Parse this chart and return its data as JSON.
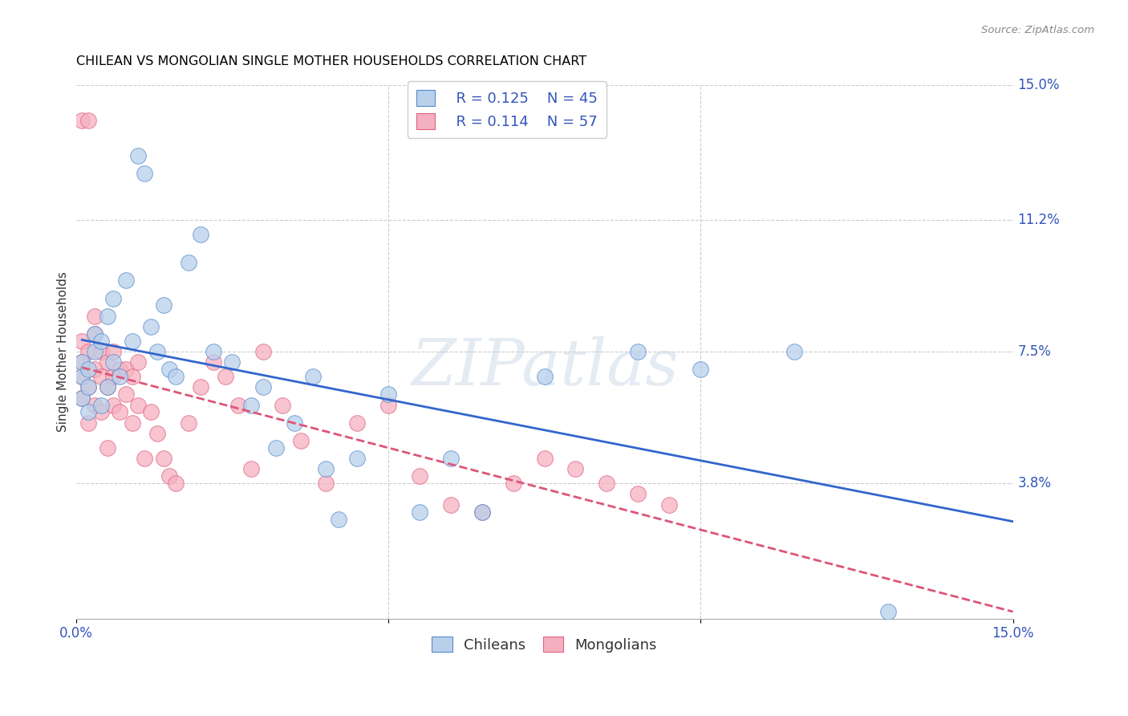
{
  "title": "CHILEAN VS MONGOLIAN SINGLE MOTHER HOUSEHOLDS CORRELATION CHART",
  "source": "Source: ZipAtlas.com",
  "ylabel": "Single Mother Households",
  "xlim": [
    0.0,
    0.15
  ],
  "ylim": [
    0.0,
    0.15
  ],
  "ytick_positions": [
    0.038,
    0.075,
    0.112,
    0.15
  ],
  "ytick_labels": [
    "3.8%",
    "7.5%",
    "11.2%",
    "15.0%"
  ],
  "chilean_color": "#b8d0ea",
  "mongolian_color": "#f5b0c0",
  "chilean_edge_color": "#5588cc",
  "mongolian_edge_color": "#e06080",
  "chilean_line_color": "#3366cc",
  "mongolian_line_color": "#dd5577",
  "R_chilean": 0.125,
  "N_chilean": 45,
  "R_mongolian": 0.114,
  "N_mongolian": 57,
  "watermark": "ZIPatlas",
  "chileans_x": [
    0.001,
    0.001,
    0.001,
    0.002,
    0.002,
    0.002,
    0.003,
    0.003,
    0.004,
    0.004,
    0.005,
    0.005,
    0.006,
    0.006,
    0.007,
    0.008,
    0.009,
    0.01,
    0.011,
    0.012,
    0.013,
    0.014,
    0.015,
    0.016,
    0.018,
    0.02,
    0.022,
    0.025,
    0.028,
    0.03,
    0.032,
    0.035,
    0.038,
    0.04,
    0.042,
    0.045,
    0.05,
    0.055,
    0.06,
    0.065,
    0.075,
    0.09,
    0.1,
    0.115,
    0.13
  ],
  "chileans_y": [
    0.062,
    0.068,
    0.072,
    0.058,
    0.065,
    0.07,
    0.075,
    0.08,
    0.06,
    0.078,
    0.065,
    0.085,
    0.09,
    0.072,
    0.068,
    0.095,
    0.078,
    0.13,
    0.125,
    0.082,
    0.075,
    0.088,
    0.07,
    0.068,
    0.1,
    0.108,
    0.075,
    0.072,
    0.06,
    0.065,
    0.048,
    0.055,
    0.068,
    0.042,
    0.028,
    0.045,
    0.063,
    0.03,
    0.045,
    0.03,
    0.068,
    0.075,
    0.07,
    0.075,
    0.002
  ],
  "mongolians_x": [
    0.001,
    0.001,
    0.001,
    0.001,
    0.001,
    0.002,
    0.002,
    0.002,
    0.002,
    0.003,
    0.003,
    0.003,
    0.003,
    0.004,
    0.004,
    0.004,
    0.005,
    0.005,
    0.005,
    0.006,
    0.006,
    0.006,
    0.007,
    0.007,
    0.008,
    0.008,
    0.009,
    0.009,
    0.01,
    0.01,
    0.011,
    0.012,
    0.013,
    0.014,
    0.015,
    0.016,
    0.018,
    0.02,
    0.022,
    0.024,
    0.026,
    0.028,
    0.03,
    0.033,
    0.036,
    0.04,
    0.045,
    0.05,
    0.055,
    0.06,
    0.065,
    0.07,
    0.075,
    0.08,
    0.085,
    0.09,
    0.095
  ],
  "mongolians_y": [
    0.062,
    0.068,
    0.072,
    0.078,
    0.14,
    0.055,
    0.065,
    0.075,
    0.14,
    0.06,
    0.07,
    0.08,
    0.085,
    0.058,
    0.068,
    0.075,
    0.048,
    0.065,
    0.072,
    0.06,
    0.068,
    0.075,
    0.058,
    0.07,
    0.063,
    0.07,
    0.055,
    0.068,
    0.06,
    0.072,
    0.045,
    0.058,
    0.052,
    0.045,
    0.04,
    0.038,
    0.055,
    0.065,
    0.072,
    0.068,
    0.06,
    0.042,
    0.075,
    0.06,
    0.05,
    0.038,
    0.055,
    0.06,
    0.04,
    0.032,
    0.03,
    0.038,
    0.045,
    0.042,
    0.038,
    0.035,
    0.032
  ]
}
